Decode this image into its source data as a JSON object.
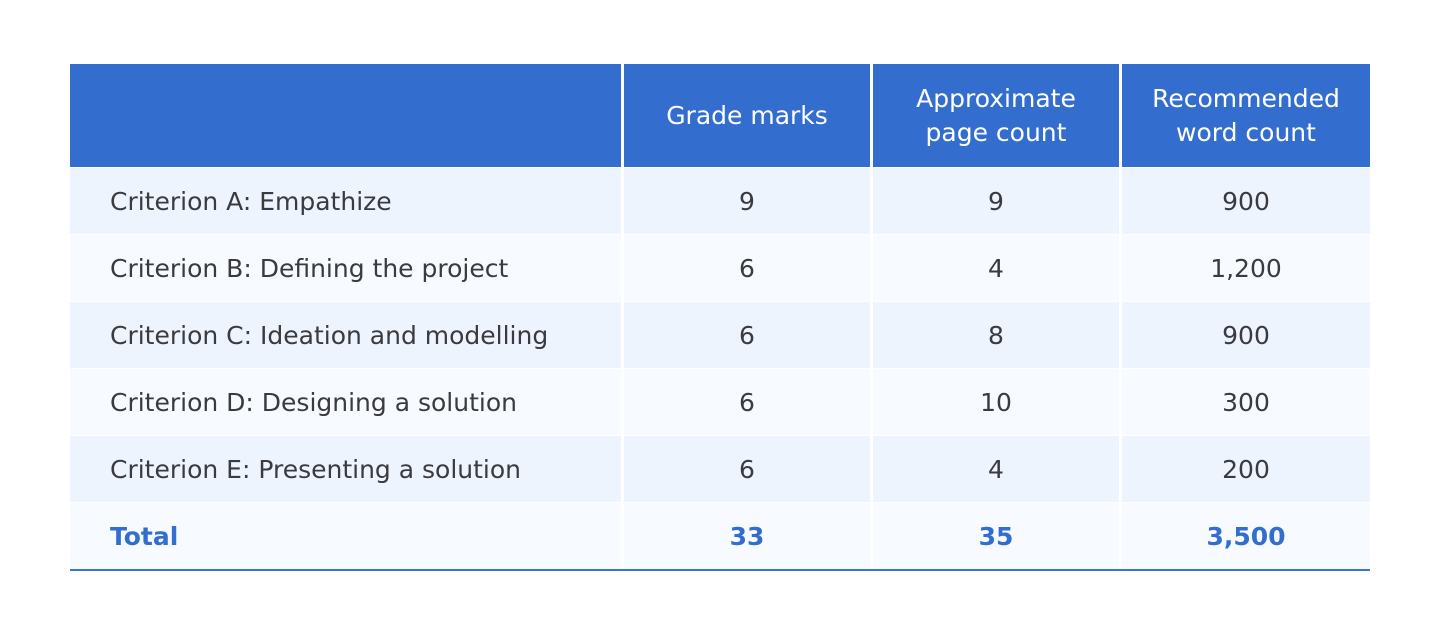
{
  "colors": {
    "header_bg": "#336ecf",
    "row_odd": "#eef4fe",
    "row_even": "#f7fbff",
    "total_text": "#336ecf"
  },
  "table": {
    "headers": [
      "",
      "Grade marks",
      "Approximate\npage count",
      "Recommended\nword count"
    ],
    "rows": [
      [
        "Criterion A: Empathize",
        "9",
        "9",
        "900"
      ],
      [
        "Criterion B: Defining the project",
        "6",
        "4",
        "1,200"
      ],
      [
        "Criterion C: Ideation and modelling",
        "6",
        "8",
        "900"
      ],
      [
        "Criterion D: Designing a solution",
        "6",
        "10",
        "300"
      ],
      [
        "Criterion E: Presenting a solution",
        "6",
        "4",
        "200"
      ]
    ],
    "total": [
      "Total",
      "33",
      "35",
      "3,500"
    ]
  }
}
